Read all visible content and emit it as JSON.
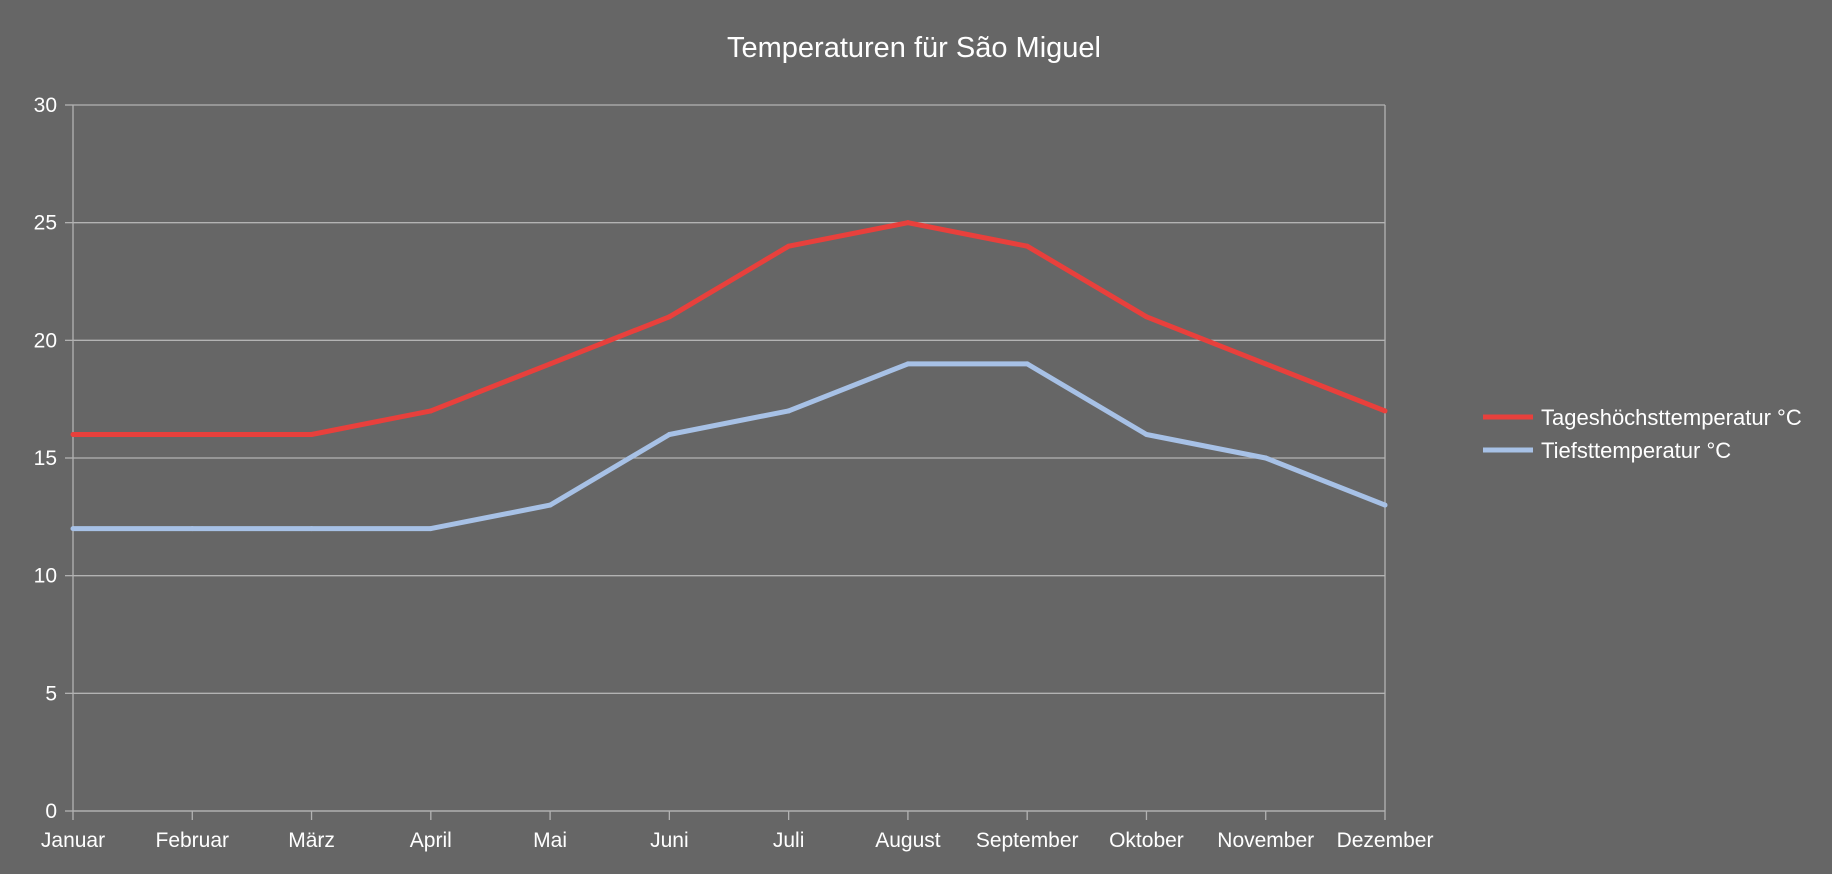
{
  "chart_data": {
    "type": "line",
    "title": "Temperaturen für São Miguel",
    "xlabel": "",
    "ylabel": "",
    "categories": [
      "Januar",
      "Februar",
      "März",
      "April",
      "Mai",
      "Juni",
      "Juli",
      "August",
      "September",
      "Oktober",
      "November",
      "Dezember"
    ],
    "ylim": [
      0,
      30
    ],
    "yticks": [
      0,
      5,
      10,
      15,
      20,
      25,
      30
    ],
    "grid": true,
    "legend_position": "right",
    "series": [
      {
        "name": "Tageshöchsttemperatur °C",
        "color": "#e8403c",
        "values": [
          16,
          16,
          16,
          17,
          19,
          21,
          24,
          25,
          24,
          21,
          19,
          17
        ]
      },
      {
        "name": "Tiefsttemperatur °C",
        "color": "#a7c1e6",
        "values": [
          12,
          12,
          12,
          12,
          13,
          16,
          17,
          19,
          19,
          16,
          15,
          13
        ]
      }
    ]
  },
  "colors": {
    "background": "#666666",
    "grid": "#b3b3b3",
    "text": "#ffffff"
  }
}
